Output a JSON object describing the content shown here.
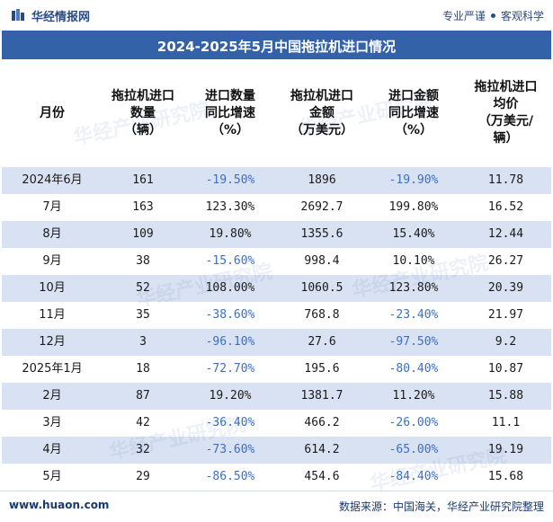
{
  "brand": {
    "name": "华经情报网",
    "tagline_left": "专业严谨",
    "tagline_right": "客观科学"
  },
  "title": "2024-2025年5月中国拖拉机进口情况",
  "columns": [
    "月份",
    "拖拉机进口\n数量\n（辆）",
    "进口数量\n同比增速\n（%）",
    "拖拉机进口\n金额\n（万美元）",
    "进口金额\n同比增速\n（%）",
    "拖拉机进口\n均价\n（万美元/\n辆）"
  ],
  "rows": [
    {
      "month": "2024年6月",
      "qty": "161",
      "qty_yoy": "-19.50%",
      "amount": "1896",
      "amount_yoy": "-19.90%",
      "price": "11.78"
    },
    {
      "month": "7月",
      "qty": "163",
      "qty_yoy": "123.30%",
      "amount": "2692.7",
      "amount_yoy": "199.80%",
      "price": "16.52"
    },
    {
      "month": "8月",
      "qty": "109",
      "qty_yoy": "19.80%",
      "amount": "1355.6",
      "amount_yoy": "15.40%",
      "price": "12.44"
    },
    {
      "month": "9月",
      "qty": "38",
      "qty_yoy": "-15.60%",
      "amount": "998.4",
      "amount_yoy": "10.10%",
      "price": "26.27"
    },
    {
      "month": "10月",
      "qty": "52",
      "qty_yoy": "108.00%",
      "amount": "1060.5",
      "amount_yoy": "123.80%",
      "price": "20.39"
    },
    {
      "month": "11月",
      "qty": "35",
      "qty_yoy": "-38.60%",
      "amount": "768.8",
      "amount_yoy": "-23.40%",
      "price": "21.97"
    },
    {
      "month": "12月",
      "qty": "3",
      "qty_yoy": "-96.10%",
      "amount": "27.6",
      "amount_yoy": "-97.50%",
      "price": "9.2"
    },
    {
      "month": "2025年1月",
      "qty": "18",
      "qty_yoy": "-72.70%",
      "amount": "195.6",
      "amount_yoy": "-80.40%",
      "price": "10.87"
    },
    {
      "month": "2月",
      "qty": "87",
      "qty_yoy": "19.20%",
      "amount": "1381.7",
      "amount_yoy": "11.20%",
      "price": "15.88"
    },
    {
      "month": "3月",
      "qty": "42",
      "qty_yoy": "-36.40%",
      "amount": "466.2",
      "amount_yoy": "-26.00%",
      "price": "11.1"
    },
    {
      "month": "4月",
      "qty": "32",
      "qty_yoy": "-73.60%",
      "amount": "614.2",
      "amount_yoy": "-65.00%",
      "price": "19.19"
    },
    {
      "month": "5月",
      "qty": "29",
      "qty_yoy": "-86.50%",
      "amount": "454.6",
      "amount_yoy": "-84.40%",
      "price": "15.68"
    }
  ],
  "footer": {
    "website": "www.huaon.com",
    "source": "数据来源：中国海关，华经产业研究院整理"
  },
  "watermark": "华经产业研究院",
  "colors": {
    "accent": "#3462a8",
    "stripe": "#d9e2f2",
    "negative": "#3a6fc4"
  }
}
